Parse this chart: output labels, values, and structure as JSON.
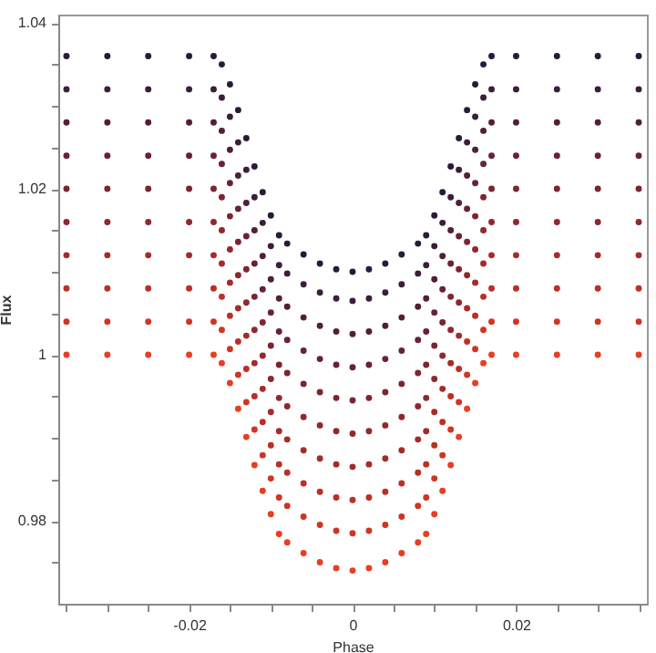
{
  "chart_data": {
    "type": "scatter",
    "xlabel": "Phase",
    "ylabel": "Flux",
    "marker": "circle",
    "x": [
      -0.035,
      -0.03,
      -0.025,
      -0.02,
      -0.017,
      -0.016,
      -0.015,
      -0.014,
      -0.013,
      -0.012,
      -0.011,
      -0.01,
      -0.009,
      -0.008,
      -0.006,
      -0.004,
      -0.002,
      0,
      0.002,
      0.004,
      0.006,
      0.008,
      0.009,
      0.01,
      0.011,
      0.012,
      0.013,
      0.014,
      0.015,
      0.016,
      0.017,
      0.02,
      0.025,
      0.03,
      0.035
    ],
    "xlim": [
      -0.036,
      0.036
    ],
    "ylim": [
      0.97,
      1.041
    ],
    "xticks": [
      {
        "value": -0.035,
        "label": null
      },
      {
        "value": -0.03,
        "label": null
      },
      {
        "value": -0.025,
        "label": null
      },
      -0.02,
      {
        "value": -0.015,
        "label": null
      },
      {
        "value": -0.01,
        "label": null
      },
      {
        "value": -0.005,
        "label": null
      },
      0,
      {
        "value": 0.005,
        "label": null
      },
      {
        "value": 0.01,
        "label": null
      },
      {
        "value": 0.015,
        "label": null
      },
      0.02,
      {
        "value": 0.025,
        "label": null
      },
      {
        "value": 0.03,
        "label": null
      },
      {
        "value": 0.035,
        "label": null
      }
    ],
    "yticks": [
      {
        "value": 0.975,
        "label": null
      },
      0.98,
      {
        "value": 0.985,
        "label": null
      },
      {
        "value": 0.99,
        "label": null
      },
      {
        "value": 0.995,
        "label": null
      },
      1,
      {
        "value": 1.005,
        "label": null
      },
      {
        "value": 1.01,
        "label": null
      },
      {
        "value": 1.015,
        "label": null
      },
      1.02,
      {
        "value": 1.025,
        "label": null
      },
      {
        "value": 1.03,
        "label": null
      },
      {
        "value": 1.035,
        "label": null
      },
      1.04
    ],
    "series": [
      {
        "color": "#2a1a3a",
        "values": [
          1.036,
          1.036,
          1.036,
          1.036,
          1.036,
          1.035,
          1.0326,
          1.0295,
          1.0261,
          1.0227,
          1.0196,
          1.0168,
          1.0144,
          1.0134,
          1.0121,
          1.011,
          1.0103,
          1.01,
          1.0103,
          1.011,
          1.0121,
          1.0134,
          1.0144,
          1.0168,
          1.0196,
          1.0227,
          1.0261,
          1.0295,
          1.0326,
          1.035,
          1.036,
          1.036,
          1.036,
          1.036,
          1.036
        ]
      },
      {
        "color": "#3d1d3b",
        "values": [
          1.032,
          1.032,
          1.032,
          1.032,
          1.032,
          1.031,
          1.0287,
          1.0256,
          1.0223,
          1.019,
          1.0159,
          1.0131,
          1.0108,
          1.0098,
          1.0085,
          1.0075,
          1.0068,
          1.0065,
          1.0068,
          1.0075,
          1.0085,
          1.0098,
          1.0108,
          1.0131,
          1.0159,
          1.019,
          1.0223,
          1.0256,
          1.0287,
          1.031,
          1.032,
          1.032,
          1.032,
          1.032,
          1.032
        ]
      },
      {
        "color": "#521f3a",
        "values": [
          1.028,
          1.028,
          1.028,
          1.028,
          1.028,
          1.027,
          1.0247,
          1.0216,
          1.0183,
          1.015,
          1.0119,
          1.0091,
          1.0068,
          1.0058,
          1.0045,
          1.0035,
          1.0028,
          1.0025,
          1.0028,
          1.0035,
          1.0045,
          1.0058,
          1.0068,
          1.0091,
          1.0119,
          1.015,
          1.0183,
          1.0216,
          1.0247,
          1.027,
          1.028,
          1.028,
          1.028,
          1.028,
          1.028
        ]
      },
      {
        "color": "#672236",
        "values": [
          1.024,
          1.024,
          1.024,
          1.024,
          1.024,
          1.023,
          1.0207,
          1.0176,
          1.0143,
          1.011,
          1.0079,
          1.0051,
          1.0028,
          1.0018,
          1.0005,
          0.9995,
          0.9988,
          0.9985,
          0.9988,
          0.9995,
          1.0005,
          1.0018,
          1.0028,
          1.0051,
          1.0079,
          1.011,
          1.0143,
          1.0176,
          1.0207,
          1.023,
          1.024,
          1.024,
          1.024,
          1.024,
          1.024
        ]
      },
      {
        "color": "#7c2531",
        "values": [
          1.02,
          1.02,
          1.02,
          1.02,
          1.02,
          1.019,
          1.0167,
          1.0136,
          1.0103,
          1.007,
          1.0039,
          1.0011,
          0.9988,
          0.9978,
          0.9965,
          0.9955,
          0.9948,
          0.9945,
          0.9948,
          0.9955,
          0.9965,
          0.9978,
          0.9988,
          1.0011,
          1.0039,
          1.007,
          1.0103,
          1.0136,
          1.0167,
          1.019,
          1.02,
          1.02,
          1.02,
          1.02,
          1.02
        ]
      },
      {
        "color": "#91282c",
        "values": [
          1.016,
          1.016,
          1.016,
          1.016,
          1.016,
          1.015,
          1.0127,
          1.0096,
          1.0063,
          1.003,
          0.9999,
          0.9971,
          0.9948,
          0.9938,
          0.9925,
          0.9915,
          0.9908,
          0.9905,
          0.9908,
          0.9915,
          0.9925,
          0.9938,
          0.9948,
          0.9971,
          0.9999,
          1.003,
          1.0063,
          1.0096,
          1.0127,
          1.015,
          1.016,
          1.016,
          1.016,
          1.016,
          1.016
        ]
      },
      {
        "color": "#a62b28",
        "values": [
          1.012,
          1.012,
          1.012,
          1.012,
          1.012,
          1.011,
          1.0087,
          1.0056,
          1.0023,
          0.999,
          0.9959,
          0.9931,
          0.9908,
          0.9898,
          0.9885,
          0.9875,
          0.9868,
          0.9865,
          0.9868,
          0.9875,
          0.9885,
          0.9898,
          0.9908,
          0.9931,
          0.9959,
          0.999,
          1.0023,
          1.0056,
          1.0087,
          1.011,
          1.012,
          1.012,
          1.012,
          1.012,
          1.012
        ]
      },
      {
        "color": "#bb2f25",
        "values": [
          1.008,
          1.008,
          1.008,
          1.008,
          1.008,
          1.007,
          1.0047,
          1.0016,
          0.9983,
          0.995,
          0.9919,
          0.9891,
          0.9868,
          0.9858,
          0.9845,
          0.9835,
          0.9828,
          0.9825,
          0.9828,
          0.9835,
          0.9845,
          0.9858,
          0.9868,
          0.9891,
          0.9919,
          0.995,
          0.9983,
          1.0016,
          1.0047,
          1.007,
          1.008,
          1.008,
          1.008,
          1.008,
          1.008
        ]
      },
      {
        "color": "#d13422",
        "values": [
          1.004,
          1.004,
          1.004,
          1.004,
          1.004,
          1.003,
          1.0007,
          0.9976,
          0.9943,
          0.991,
          0.9879,
          0.9851,
          0.9828,
          0.9818,
          0.9805,
          0.9795,
          0.9788,
          0.9785,
          0.9788,
          0.9795,
          0.9805,
          0.9818,
          0.9828,
          0.9851,
          0.9879,
          0.991,
          0.9943,
          0.9976,
          1.0007,
          1.003,
          1.004,
          1.004,
          1.004,
          1.004,
          1.004
        ]
      },
      {
        "color": "#ea3d22",
        "values": [
          1.0,
          1.0,
          1.0,
          1.0,
          1.0,
          0.999,
          0.9966,
          0.9935,
          0.9901,
          0.9867,
          0.9836,
          0.9808,
          0.9784,
          0.9774,
          0.9761,
          0.975,
          0.9743,
          0.974,
          0.9743,
          0.975,
          0.9761,
          0.9774,
          0.9784,
          0.9808,
          0.9836,
          0.9867,
          0.9901,
          0.9935,
          0.9966,
          0.999,
          1.0,
          1.0,
          1.0,
          1.0,
          1.0
        ]
      }
    ]
  }
}
